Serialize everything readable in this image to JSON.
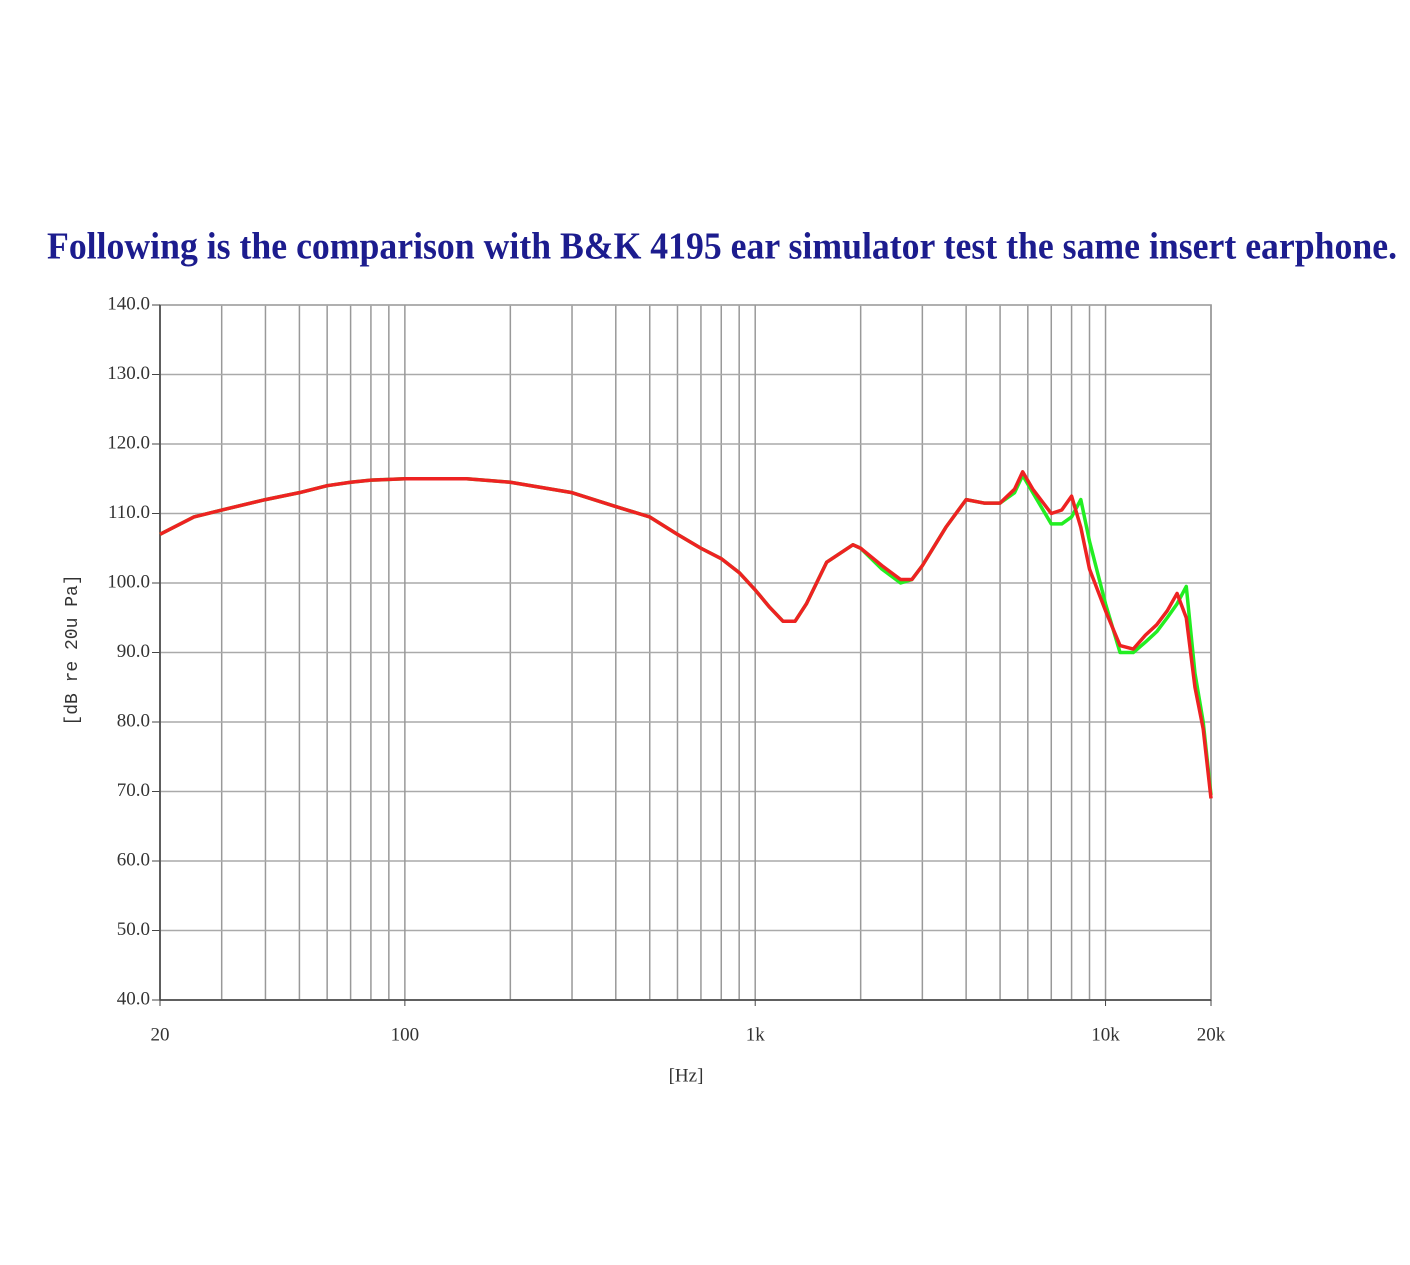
{
  "chart_data": {
    "type": "line",
    "title": "Following is the comparison with B&K 4195 ear simulator test the same insert earphone.",
    "x_label": "[Hz]",
    "y_label": "[dB re 20u Pa]",
    "log_x": true,
    "grid": true,
    "xlim": [
      20,
      20000
    ],
    "xticks": [
      20,
      100,
      {
        "value": 1000,
        "label": "1k"
      },
      {
        "value": 10000,
        "label": "10k"
      },
      {
        "value": 20000,
        "label": "20k"
      }
    ],
    "ylim": [
      40,
      140
    ],
    "yticks": [
      {
        "value": 40,
        "label": "40.0"
      },
      {
        "value": 50,
        "label": "50.0"
      },
      {
        "value": 60,
        "label": "60.0"
      },
      {
        "value": 70,
        "label": "70.0"
      },
      {
        "value": 80,
        "label": "80.0"
      },
      {
        "value": 90,
        "label": "90.0"
      },
      {
        "value": 100,
        "label": "100.0"
      },
      {
        "value": 110,
        "label": "110.0"
      },
      {
        "value": 120,
        "label": "120.0"
      },
      {
        "value": 130,
        "label": "130.0"
      },
      {
        "value": 140,
        "label": "140.0"
      }
    ],
    "x": [
      20,
      25,
      30,
      40,
      50,
      60,
      70,
      80,
      100,
      150,
      200,
      300,
      400,
      500,
      600,
      700,
      800,
      900,
      1000,
      1100,
      1200,
      1300,
      1400,
      1600,
      1900,
      2000,
      2300,
      2600,
      2800,
      3000,
      3500,
      4000,
      4500,
      5000,
      5500,
      5800,
      6200,
      7000,
      7500,
      8000,
      8500,
      9000,
      10000,
      11000,
      12000,
      13000,
      14000,
      15000,
      16000,
      17000,
      18000,
      19000,
      20000
    ],
    "series": [
      {
        "color": "#22ee22",
        "values": [
          107,
          109.5,
          110.5,
          112,
          113,
          114,
          114.5,
          114.8,
          115,
          115,
          114.5,
          113,
          111,
          109.5,
          107,
          105,
          103.5,
          101.5,
          99,
          96.5,
          94.5,
          94.5,
          97,
          103,
          105.5,
          105,
          102,
          100,
          100.5,
          102.5,
          108,
          112,
          111.5,
          111.5,
          113,
          115.5,
          113,
          108.5,
          108.5,
          109.5,
          112,
          106,
          97,
          90,
          90,
          91.5,
          93,
          95,
          97,
          99.5,
          87,
          80,
          69.5
        ]
      },
      {
        "color": "#ee2222",
        "values": [
          107,
          109.5,
          110.5,
          112,
          113,
          114,
          114.5,
          114.8,
          115,
          115,
          114.5,
          113,
          111,
          109.5,
          107,
          105,
          103.5,
          101.5,
          99,
          96.5,
          94.5,
          94.5,
          97,
          103,
          105.5,
          105,
          102.5,
          100.5,
          100.5,
          102.5,
          108,
          112,
          111.5,
          111.5,
          113.5,
          116,
          113.5,
          110,
          110.5,
          112.5,
          108,
          102,
          96,
          91,
          90.5,
          92.5,
          94,
          96,
          98.5,
          95,
          85,
          79,
          69
        ]
      }
    ]
  }
}
